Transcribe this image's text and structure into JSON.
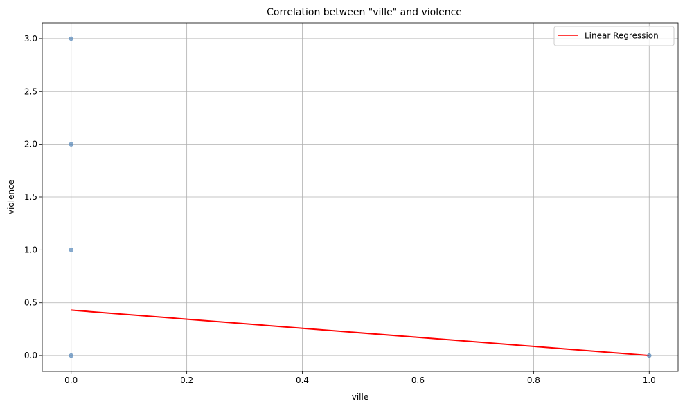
{
  "chart_data": {
    "type": "scatter",
    "title": "Correlation between \"ville\" and violence",
    "xlabel": "ville",
    "ylabel": "violence",
    "xlim": [
      -0.05,
      1.05
    ],
    "ylim": [
      -0.15,
      3.15
    ],
    "xticks": [
      0.0,
      0.2,
      0.4,
      0.6,
      0.8,
      1.0
    ],
    "xtick_labels": [
      "0.0",
      "0.2",
      "0.4",
      "0.6",
      "0.8",
      "1.0"
    ],
    "yticks": [
      0.0,
      0.5,
      1.0,
      1.5,
      2.0,
      2.5,
      3.0
    ],
    "ytick_labels": [
      "0.0",
      "0.5",
      "1.0",
      "1.5",
      "2.0",
      "2.5",
      "3.0"
    ],
    "grid": true,
    "legend_position": "top-right",
    "points": [
      {
        "x": 0,
        "y": 0
      },
      {
        "x": 0,
        "y": 1
      },
      {
        "x": 0,
        "y": 2
      },
      {
        "x": 0,
        "y": 3
      },
      {
        "x": 1,
        "y": 0
      }
    ],
    "regression": {
      "name": "Linear Regression",
      "x": [
        0,
        1
      ],
      "y": [
        0.43,
        0.0
      ]
    },
    "colors": {
      "points": "#4a7fb5",
      "regression": "#ff0000",
      "grid": "#b0b0b0"
    }
  }
}
